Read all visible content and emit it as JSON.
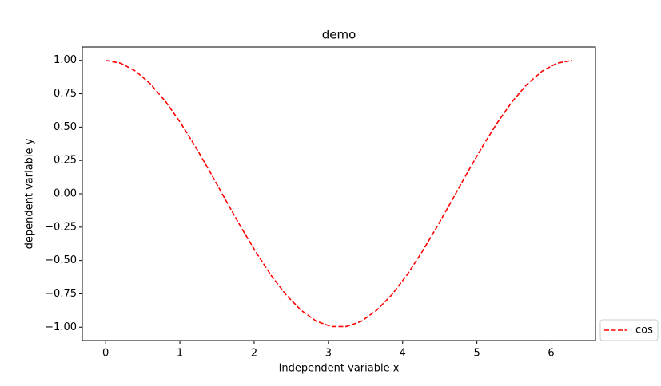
{
  "chart_data": {
    "type": "line",
    "title": "demo",
    "x_label": "Independent variable x",
    "y_label": "dependent variable y",
    "x": [
      0,
      0.203,
      0.405,
      0.608,
      0.811,
      1.013,
      1.216,
      1.419,
      1.621,
      1.824,
      2.027,
      2.23,
      2.432,
      2.635,
      2.838,
      3.04,
      3.243,
      3.446,
      3.648,
      3.851,
      4.054,
      4.256,
      4.459,
      4.662,
      4.864,
      5.067,
      5.27,
      5.472,
      5.675,
      5.878,
      6.08,
      6.283
    ],
    "series": [
      {
        "name": "cos",
        "color": "#ff0000",
        "dash": "dashed",
        "values": [
          1,
          0.979,
          0.919,
          0.821,
          0.689,
          0.529,
          0.347,
          0.151,
          -0.051,
          -0.251,
          -0.44,
          -0.612,
          -0.759,
          -0.874,
          -0.955,
          -0.995,
          -0.995,
          -0.955,
          -0.874,
          -0.759,
          -0.612,
          -0.44,
          -0.251,
          -0.051,
          0.151,
          0.347,
          0.529,
          0.689,
          0.821,
          0.919,
          0.979,
          1
        ]
      }
    ],
    "xlim": [
      -0.314,
      6.597
    ],
    "ylim": [
      -1.1,
      1.1
    ],
    "xticks": [
      0,
      1,
      2,
      3,
      4,
      5,
      6
    ],
    "yticks": [
      {
        "value": 1,
        "label": "1.00"
      },
      {
        "value": 0.75,
        "label": "0.75"
      },
      {
        "value": 0.5,
        "label": "0.50"
      },
      {
        "value": 0.25,
        "label": "0.25"
      },
      {
        "value": 0,
        "label": "0.00"
      },
      {
        "value": -0.25,
        "label": "−0.25"
      },
      {
        "value": -0.5,
        "label": "−0.50"
      },
      {
        "value": -0.75,
        "label": "−0.75"
      },
      {
        "value": -1,
        "label": "−1.00"
      }
    ],
    "grid": false,
    "legend": "outside lower right"
  }
}
